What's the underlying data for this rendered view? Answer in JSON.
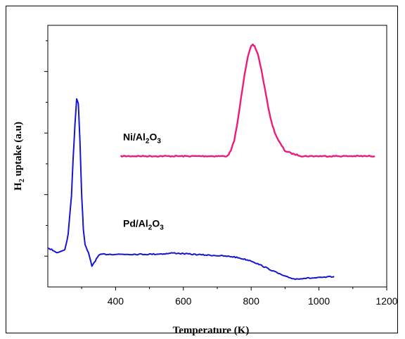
{
  "chart_data": {
    "type": "line",
    "title": "",
    "xlabel": "Temperature (K)",
    "ylabel_main": "H",
    "ylabel_sub": "2",
    "ylabel_rest": " uptake (a.u)",
    "xlim": [
      200,
      1200
    ],
    "ylim": [
      0,
      1
    ],
    "xticks": [
      400,
      600,
      800,
      1000,
      1200
    ],
    "xtick_labels": [
      "400",
      "600",
      "800",
      "1000",
      "1200"
    ],
    "grid": false,
    "series": [
      {
        "name_parts": [
          "Ni/Al",
          "2",
          "O",
          "3"
        ],
        "color": "#ec1c7a",
        "label_at": [
          422,
          0.56
        ],
        "x": [
          415,
          450,
          500,
          550,
          600,
          650,
          700,
          730,
          740,
          750,
          760,
          770,
          780,
          790,
          800,
          805,
          810,
          820,
          830,
          840,
          850,
          860,
          870,
          880,
          890,
          900,
          920,
          950,
          1000,
          1050,
          1100,
          1165
        ],
        "y": [
          0.5,
          0.5,
          0.5,
          0.5,
          0.5,
          0.5,
          0.5,
          0.5,
          0.52,
          0.56,
          0.63,
          0.72,
          0.81,
          0.88,
          0.92,
          0.925,
          0.92,
          0.89,
          0.83,
          0.76,
          0.69,
          0.63,
          0.59,
          0.56,
          0.54,
          0.52,
          0.51,
          0.5,
          0.5,
          0.5,
          0.5,
          0.5
        ]
      },
      {
        "name_parts": [
          "Pd/Al",
          "2",
          "O",
          "3"
        ],
        "color": "#1515d4",
        "label_at": [
          422,
          0.23
        ],
        "x": [
          200,
          230,
          250,
          260,
          270,
          275,
          280,
          285,
          290,
          295,
          300,
          305,
          310,
          320,
          330,
          340,
          350,
          360,
          400,
          450,
          500,
          550,
          570,
          600,
          650,
          700,
          750,
          800,
          850,
          900,
          930,
          950,
          1000,
          1045
        ],
        "y": [
          0.15,
          0.13,
          0.14,
          0.2,
          0.35,
          0.5,
          0.62,
          0.72,
          0.7,
          0.55,
          0.35,
          0.22,
          0.16,
          0.13,
          0.08,
          0.1,
          0.12,
          0.125,
          0.125,
          0.125,
          0.125,
          0.127,
          0.13,
          0.127,
          0.123,
          0.12,
          0.115,
          0.1,
          0.07,
          0.04,
          0.03,
          0.033,
          0.035,
          0.04
        ]
      }
    ]
  }
}
